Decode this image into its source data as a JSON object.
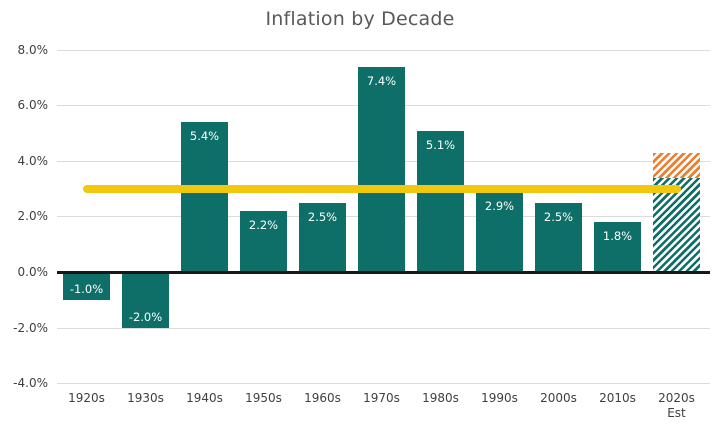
{
  "chart_data": {
    "type": "bar",
    "title": "Inflation by Decade",
    "categories": [
      "1920s",
      "1930s",
      "1940s",
      "1950s",
      "1960s",
      "1970s",
      "1980s",
      "1990s",
      "2000s",
      "2010s",
      "2020s Est"
    ],
    "values": [
      -1.0,
      -2.0,
      5.4,
      2.2,
      2.5,
      7.4,
      5.1,
      2.9,
      2.5,
      1.8,
      null
    ],
    "bar_labels": [
      "-1.0%",
      "-2.0%",
      "5.4%",
      "2.2%",
      "2.5%",
      "7.4%",
      "5.1%",
      "2.9%",
      "2.5%",
      "1.8%",
      ""
    ],
    "estimate_bar": {
      "category": "2020s Est",
      "style": "diagonal-hatch",
      "segments": [
        {
          "from": 0,
          "to": 3.4,
          "color_key": "teal"
        },
        {
          "from": 3.4,
          "to": 4.3,
          "color_key": "orange"
        }
      ]
    },
    "reference_line": {
      "value": 3.0,
      "color": "#f2c80f"
    },
    "y_ticks": [
      {
        "label": "8.0%",
        "value": 8
      },
      {
        "label": "6.0%",
        "value": 6
      },
      {
        "label": "4.0%",
        "value": 4
      },
      {
        "label": "2.0%",
        "value": 2
      },
      {
        "label": "0.0%",
        "value": 0
      },
      {
        "label": "-2.0%",
        "value": -2
      },
      {
        "label": "-4.0%",
        "value": -4
      }
    ],
    "ylim": [
      -4,
      8
    ],
    "grid": true,
    "legend": "none",
    "colors": {
      "teal": "#0d6f67",
      "orange": "#ee7d2f",
      "yellow": "#f2c80f",
      "gridline": "#dbdbdb",
      "zero_axis": "#171717",
      "title_text": "#595959",
      "tick_text": "#3f3f3f",
      "bar_label_text": "#ffffff",
      "background": "#ffffff"
    }
  }
}
